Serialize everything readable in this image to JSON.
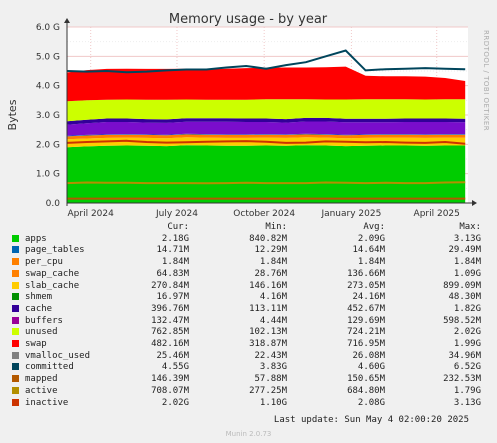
{
  "chart_data": {
    "type": "area",
    "title": "Memory usage - by year",
    "ylabel": "Bytes",
    "side_label": "RRDTOOL / TOBI OETIKER",
    "ylim": [
      0,
      6.0
    ],
    "yunit": "G",
    "yticks": [
      "0.0",
      "1.0 G",
      "2.0 G",
      "3.0 G",
      "4.0 G",
      "5.0 G",
      "6.0 G"
    ],
    "x_range": [
      "2024-03-07",
      "2025-05-04"
    ],
    "xticks": [
      {
        "date": "2024-04-01",
        "label": "April 2024"
      },
      {
        "date": "2024-07-01",
        "label": "July 2024"
      },
      {
        "date": "2024-10-01",
        "label": "October 2024"
      },
      {
        "date": "2025-01-01",
        "label": "January 2025"
      },
      {
        "date": "2025-04-01",
        "label": "April 2025"
      }
    ],
    "grid": true,
    "x": [
      "2024-03-07",
      "2024-03-28",
      "2024-04-18",
      "2024-05-09",
      "2024-05-30",
      "2024-06-20",
      "2024-07-11",
      "2024-08-01",
      "2024-08-22",
      "2024-09-12",
      "2024-10-03",
      "2024-10-24",
      "2024-11-14",
      "2024-12-05",
      "2024-12-26",
      "2025-01-16",
      "2025-02-06",
      "2025-02-27",
      "2025-03-20",
      "2025-04-10",
      "2025-05-01"
    ],
    "stack": [
      {
        "name": "apps",
        "color": "#00cc00",
        "values": [
          1.9,
          1.93,
          1.95,
          1.96,
          1.95,
          1.94,
          1.97,
          1.96,
          1.95,
          1.95,
          1.96,
          1.95,
          1.97,
          1.96,
          1.94,
          1.95,
          1.96,
          1.96,
          1.95,
          1.96,
          1.96
        ]
      },
      {
        "name": "slab_cache",
        "color": "#ffcc00",
        "values": [
          0.27,
          0.27,
          0.27,
          0.27,
          0.27,
          0.27,
          0.27,
          0.27,
          0.27,
          0.27,
          0.27,
          0.27,
          0.27,
          0.27,
          0.27,
          0.27,
          0.27,
          0.27,
          0.27,
          0.27,
          0.27
        ]
      },
      {
        "name": "swap_cache",
        "color": "#ff8000",
        "values": [
          0.1,
          0.1,
          0.1,
          0.1,
          0.1,
          0.1,
          0.1,
          0.1,
          0.1,
          0.1,
          0.1,
          0.1,
          0.1,
          0.1,
          0.1,
          0.1,
          0.1,
          0.1,
          0.1,
          0.1,
          0.1
        ]
      },
      {
        "name": "page_tables",
        "color": "#0066b3",
        "values": [
          0.02,
          0.02,
          0.02,
          0.02,
          0.02,
          0.02,
          0.02,
          0.02,
          0.02,
          0.02,
          0.02,
          0.02,
          0.02,
          0.02,
          0.02,
          0.02,
          0.02,
          0.02,
          0.02,
          0.02,
          0.02
        ]
      },
      {
        "name": "buffers",
        "color": "#7a0dcc",
        "values": [
          0.38,
          0.4,
          0.42,
          0.41,
          0.4,
          0.4,
          0.41,
          0.42,
          0.43,
          0.42,
          0.41,
          0.4,
          0.42,
          0.43,
          0.42,
          0.41,
          0.4,
          0.41,
          0.42,
          0.41,
          0.4
        ]
      },
      {
        "name": "cache",
        "color": "#330099",
        "values": [
          0.12,
          0.12,
          0.12,
          0.12,
          0.12,
          0.12,
          0.12,
          0.12,
          0.12,
          0.12,
          0.12,
          0.12,
          0.12,
          0.12,
          0.12,
          0.12,
          0.12,
          0.12,
          0.12,
          0.12,
          0.12
        ]
      },
      {
        "name": "unused",
        "color": "#ccff00",
        "values": [
          0.68,
          0.66,
          0.64,
          0.65,
          0.66,
          0.67,
          0.64,
          0.63,
          0.63,
          0.64,
          0.66,
          0.68,
          0.64,
          0.63,
          0.66,
          0.67,
          0.67,
          0.66,
          0.65,
          0.66,
          0.67
        ]
      },
      {
        "name": "swap",
        "color": "#ff0000",
        "values": [
          0.98,
          1.03,
          1.05,
          1.05,
          1.05,
          1.05,
          1.05,
          1.05,
          1.06,
          1.08,
          1.07,
          1.08,
          1.08,
          1.1,
          1.12,
          0.8,
          0.78,
          0.78,
          0.78,
          0.72,
          0.62
        ]
      }
    ],
    "lines": [
      {
        "name": "committed",
        "color": "#00455c",
        "values": [
          4.5,
          4.48,
          4.5,
          4.46,
          4.48,
          4.52,
          4.55,
          4.55,
          4.62,
          4.67,
          4.58,
          4.7,
          4.8,
          5.0,
          5.2,
          4.52,
          4.56,
          4.58,
          4.6,
          4.58,
          4.56
        ]
      },
      {
        "name": "inactive",
        "color": "#cc3300",
        "values": [
          2.05,
          2.08,
          2.1,
          2.12,
          2.08,
          2.06,
          2.07,
          2.09,
          2.1,
          2.11,
          2.09,
          2.05,
          2.06,
          2.1,
          2.09,
          2.07,
          2.08,
          2.06,
          2.05,
          2.08,
          2.02
        ]
      },
      {
        "name": "active",
        "color": "#b38f00",
        "values": [
          0.68,
          0.7,
          0.69,
          0.69,
          0.68,
          0.68,
          0.68,
          0.67,
          0.68,
          0.69,
          0.68,
          0.68,
          0.68,
          0.7,
          0.69,
          0.68,
          0.69,
          0.68,
          0.68,
          0.7,
          0.71
        ]
      },
      {
        "name": "mapped",
        "color": "#b35900",
        "values": [
          0.15,
          0.15,
          0.15,
          0.15,
          0.15,
          0.15,
          0.15,
          0.15,
          0.15,
          0.15,
          0.15,
          0.15,
          0.15,
          0.15,
          0.15,
          0.15,
          0.15,
          0.15,
          0.15,
          0.15,
          0.15
        ]
      }
    ],
    "legend": {
      "headers": [
        "Cur:",
        "Min:",
        "Avg:",
        "Max:"
      ],
      "rows": [
        {
          "name": "apps",
          "color": "#00cc00",
          "cur": "2.18G",
          "min": "840.82M",
          "avg": "2.09G",
          "max": "3.13G"
        },
        {
          "name": "page_tables",
          "color": "#0066b3",
          "cur": "14.71M",
          "min": "12.29M",
          "avg": "14.64M",
          "max": "29.49M"
        },
        {
          "name": "per_cpu",
          "color": "#ff8000",
          "cur": "1.84M",
          "min": "1.84M",
          "avg": "1.84M",
          "max": "1.84M"
        },
        {
          "name": "swap_cache",
          "color": "#ff8000",
          "cur": "64.83M",
          "min": "28.76M",
          "avg": "136.66M",
          "max": "1.09G"
        },
        {
          "name": "slab_cache",
          "color": "#ffcc00",
          "cur": "270.84M",
          "min": "146.16M",
          "avg": "273.05M",
          "max": "899.09M"
        },
        {
          "name": "shmem",
          "color": "#008f00",
          "cur": "16.97M",
          "min": "4.16M",
          "avg": "24.16M",
          "max": "48.30M"
        },
        {
          "name": "cache",
          "color": "#330099",
          "cur": "396.76M",
          "min": "113.11M",
          "avg": "452.67M",
          "max": "1.82G"
        },
        {
          "name": "buffers",
          "color": "#990099",
          "cur": "132.47M",
          "min": "4.44M",
          "avg": "129.69M",
          "max": "598.52M"
        },
        {
          "name": "unused",
          "color": "#ccff00",
          "cur": "762.85M",
          "min": "102.13M",
          "avg": "724.21M",
          "max": "2.02G"
        },
        {
          "name": "swap",
          "color": "#ff0000",
          "cur": "482.16M",
          "min": "318.87M",
          "avg": "716.95M",
          "max": "1.99G"
        },
        {
          "name": "vmalloc_used",
          "color": "#808080",
          "cur": "25.46M",
          "min": "22.43M",
          "avg": "26.08M",
          "max": "34.96M"
        },
        {
          "name": "committed",
          "color": "#00455c",
          "cur": "4.55G",
          "min": "3.83G",
          "avg": "4.60G",
          "max": "6.52G"
        },
        {
          "name": "mapped",
          "color": "#b35900",
          "cur": "146.39M",
          "min": "57.88M",
          "avg": "150.65M",
          "max": "232.53M"
        },
        {
          "name": "active",
          "color": "#b38f00",
          "cur": "708.07M",
          "min": "277.25M",
          "avg": "684.80M",
          "max": "1.79G"
        },
        {
          "name": "inactive",
          "color": "#cc3300",
          "cur": "2.02G",
          "min": "1.10G",
          "avg": "2.08G",
          "max": "3.13G"
        }
      ]
    }
  },
  "footer": {
    "last_update": "Last update: Sun May  4 02:00:20 2025",
    "munin_version": "Munin 2.0.73"
  }
}
